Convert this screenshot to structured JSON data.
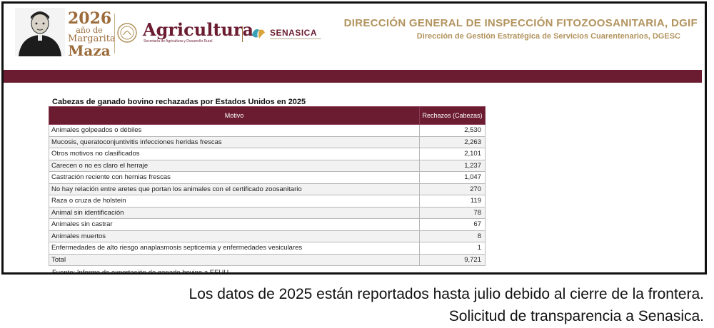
{
  "header": {
    "commemorative": {
      "year": "2026",
      "line1": "año de",
      "line2": "Margarita",
      "line3": "Maza"
    },
    "agency": {
      "name": "Agricultura",
      "subtitle": "Secretaría de Agricultura y Desarrollo Rural"
    },
    "senasica": {
      "name": "SENASICA"
    },
    "title": "DIRECCIÓN GENERAL DE INSPECCIÓN FITOZOOSANITARIA, DGIF",
    "subtitle": "Dirección de Gestión Estratégica de Servicios Cuarentenarios, DGESC"
  },
  "table": {
    "title": "Cabezas de ganado bovino rechazadas por Estados Unidos en 2025",
    "col_motivo": "Motivo",
    "col_rechazos": "Rechazos (Cabezas)",
    "rows": [
      {
        "motivo": "Animales golpeados o débiles",
        "rechazos": "2,530"
      },
      {
        "motivo": "Mucosis, queratoconjuntivitis infecciones heridas frescas",
        "rechazos": "2,263"
      },
      {
        "motivo": "Otros motivos no clasificados",
        "rechazos": "2,101"
      },
      {
        "motivo": "Carecen o no es claro el herraje",
        "rechazos": "1,237"
      },
      {
        "motivo": "Castración reciente con hernias frescas",
        "rechazos": "1,047"
      },
      {
        "motivo": "No hay  relación entre aretes que portan los animales con el certificado zoosanitario",
        "rechazos": "270"
      },
      {
        "motivo": "Raza o cruza de holstein",
        "rechazos": "119"
      },
      {
        "motivo": "Animal sin identificación",
        "rechazos": "78"
      },
      {
        "motivo": "Animales sin castrar",
        "rechazos": "67"
      },
      {
        "motivo": "Animales muertos",
        "rechazos": "8"
      },
      {
        "motivo": "Enfermedades de alto riesgo anaplasmosis septicemia y enfermedades vesiculares",
        "rechazos": "1"
      },
      {
        "motivo": "Total",
        "rechazos": "9,721"
      }
    ],
    "source": "Fuente: Informe de exportación de ganado bovino a EEUU."
  },
  "caption": {
    "line1": "Los datos de 2025 están reportados hasta julio debido al cierre de la frontera.",
    "line2": "Solicitud de transparencia a Senasica."
  },
  "colors": {
    "brand": "#6b1c31",
    "gold": "#b2935d"
  }
}
